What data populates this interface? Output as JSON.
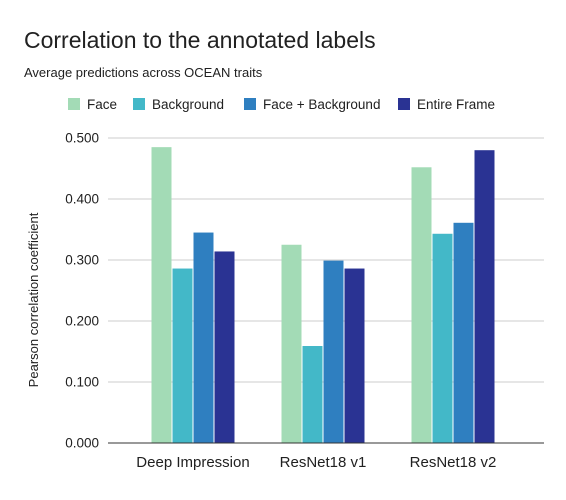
{
  "chart_data": {
    "type": "bar",
    "title": "Correlation to the annotated labels",
    "subtitle": "Average predictions across OCEAN traits",
    "xlabel": "",
    "ylabel": "Pearson correlation coefficient",
    "categories": [
      "Deep Impression",
      "ResNet18 v1",
      "ResNet18 v2"
    ],
    "series": [
      {
        "name": "Face",
        "values": [
          0.485,
          0.325,
          0.452
        ],
        "color": "#a3dbb6"
      },
      {
        "name": "Background",
        "values": [
          0.286,
          0.159,
          0.343
        ],
        "color": "#43b8c8"
      },
      {
        "name": "Face + Background",
        "values": [
          0.345,
          0.299,
          0.361
        ],
        "color": "#2f7fc0"
      },
      {
        "name": "Entire Frame",
        "values": [
          0.314,
          0.286,
          0.48
        ],
        "color": "#2a3393"
      }
    ],
    "ylim": [
      0,
      0.5
    ],
    "yticks": [
      0,
      0.1,
      0.2,
      0.3,
      0.4,
      0.5
    ],
    "ytick_labels": [
      "0.000",
      "0.100",
      "0.200",
      "0.300",
      "0.400",
      "0.500"
    ],
    "grid": true,
    "legend_position": "top-left"
  }
}
